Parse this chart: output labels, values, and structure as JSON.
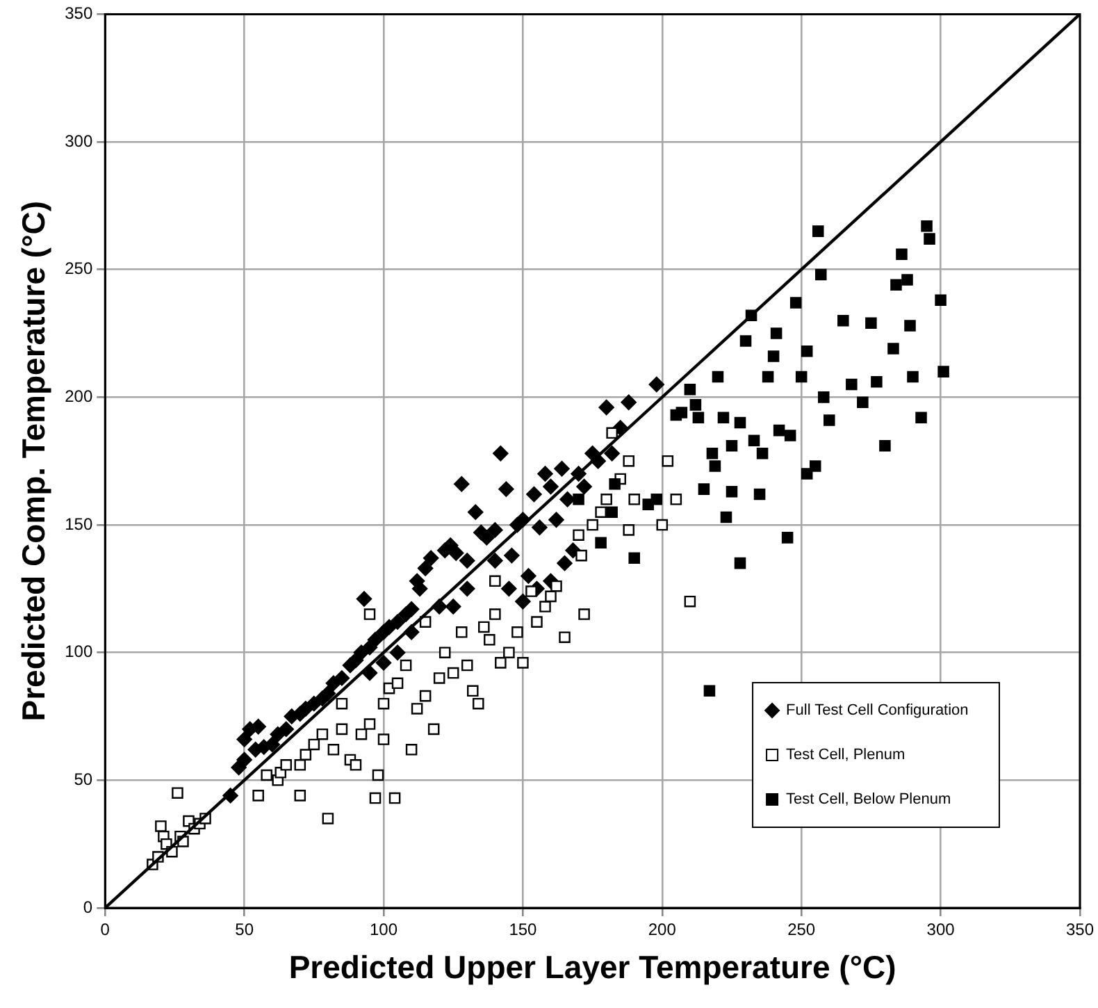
{
  "chart_data": {
    "type": "scatter",
    "xlabel": "Predicted Upper Layer Temperature (°C)",
    "ylabel": "Predicted Comp. Temperature (°C)",
    "xlim": [
      0,
      350
    ],
    "ylim": [
      0,
      350
    ],
    "xticks": [
      0,
      50,
      100,
      150,
      200,
      250,
      300,
      350
    ],
    "yticks": [
      0,
      50,
      100,
      150,
      200,
      250,
      300,
      350
    ],
    "grid": true,
    "legend": "bottom right",
    "series": [
      {
        "name": "Full Test Cell Configuration",
        "marker": "diamond",
        "color": "#000000",
        "x": [
          45,
          48,
          50,
          50,
          52,
          54,
          55,
          57,
          60,
          62,
          65,
          67,
          70,
          72,
          75,
          78,
          80,
          82,
          85,
          88,
          90,
          92,
          93,
          95,
          97,
          100,
          102,
          105,
          108,
          110,
          112,
          113,
          115,
          117,
          120,
          122,
          124,
          126,
          128,
          130,
          133,
          135,
          137,
          140,
          142,
          144,
          146,
          148,
          150,
          152,
          154,
          156,
          158,
          160,
          162,
          164,
          166,
          168,
          170,
          172,
          175,
          177,
          180,
          182,
          185,
          188,
          198,
          160,
          165,
          140,
          145,
          150,
          155,
          130,
          125,
          110,
          105,
          100,
          95
        ],
        "values": [
          44,
          55,
          58,
          66,
          70,
          62,
          71,
          63,
          64,
          68,
          70,
          75,
          76,
          78,
          80,
          82,
          84,
          88,
          90,
          95,
          97,
          100,
          121,
          102,
          105,
          108,
          110,
          112,
          115,
          117,
          128,
          125,
          133,
          137,
          118,
          140,
          142,
          139,
          166,
          136,
          155,
          147,
          145,
          148,
          178,
          164,
          138,
          150,
          152,
          130,
          162,
          149,
          170,
          165,
          152,
          172,
          160,
          140,
          170,
          165,
          178,
          175,
          196,
          178,
          188,
          198,
          205,
          128,
          135,
          136,
          125,
          120,
          125,
          125,
          118,
          108,
          100,
          96,
          92
        ]
      },
      {
        "name": "Test Cell, Plenum",
        "marker": "square",
        "color": "#ffffff",
        "x": [
          17,
          19,
          20,
          21,
          22,
          24,
          26,
          27,
          28,
          30,
          32,
          34,
          36,
          55,
          58,
          62,
          63,
          65,
          70,
          70,
          72,
          75,
          78,
          80,
          82,
          85,
          88,
          90,
          92,
          95,
          97,
          98,
          100,
          100,
          102,
          104,
          105,
          108,
          110,
          112,
          115,
          118,
          120,
          122,
          125,
          128,
          130,
          132,
          134,
          136,
          138,
          140,
          142,
          145,
          148,
          150,
          153,
          155,
          158,
          160,
          162,
          165,
          171,
          170,
          172,
          175,
          178,
          180,
          182,
          185,
          188,
          190,
          188,
          200,
          202,
          205,
          210,
          95,
          85,
          115,
          140
        ],
        "values": [
          17,
          20,
          32,
          28,
          25,
          22,
          45,
          28,
          26,
          34,
          31,
          33,
          35,
          44,
          52,
          50,
          53,
          56,
          44,
          56,
          60,
          64,
          68,
          35,
          62,
          70,
          58,
          56,
          68,
          72,
          43,
          52,
          66,
          80,
          86,
          43,
          88,
          95,
          62,
          78,
          83,
          70,
          90,
          100,
          92,
          108,
          95,
          85,
          80,
          110,
          105,
          115,
          96,
          100,
          108,
          96,
          124,
          112,
          118,
          122,
          126,
          106,
          138,
          146,
          115,
          150,
          155,
          160,
          186,
          168,
          175,
          160,
          148,
          150,
          175,
          160,
          120,
          115,
          80,
          112,
          128
        ]
      },
      {
        "name": "Test Cell, Below Plenum",
        "marker": "square",
        "color": "#000000",
        "x": [
          207,
          210,
          212,
          213,
          215,
          217,
          220,
          222,
          223,
          225,
          228,
          230,
          232,
          233,
          235,
          236,
          238,
          240,
          241,
          242,
          245,
          246,
          248,
          250,
          252,
          252,
          255,
          256,
          257,
          258,
          260,
          265,
          268,
          272,
          275,
          277,
          280,
          283,
          284,
          286,
          288,
          289,
          290,
          293,
          295,
          296,
          300,
          301,
          225,
          228,
          218,
          219,
          205,
          198,
          195,
          182,
          190,
          178,
          170,
          183
        ],
        "values": [
          194,
          203,
          197,
          192,
          164,
          85,
          208,
          192,
          153,
          163,
          135,
          222,
          232,
          183,
          162,
          178,
          208,
          216,
          225,
          187,
          145,
          185,
          237,
          208,
          218,
          170,
          173,
          265,
          248,
          200,
          191,
          230,
          205,
          198,
          229,
          206,
          181,
          219,
          244,
          256,
          246,
          228,
          208,
          192,
          267,
          262,
          238,
          210,
          181,
          190,
          178,
          173,
          193,
          160,
          158,
          155,
          137,
          143,
          160,
          166
        ]
      },
      {
        "type": "line",
        "marker": "none",
        "color": "#000000",
        "x": [
          0,
          350
        ],
        "values": [
          0,
          350
        ]
      }
    ]
  }
}
